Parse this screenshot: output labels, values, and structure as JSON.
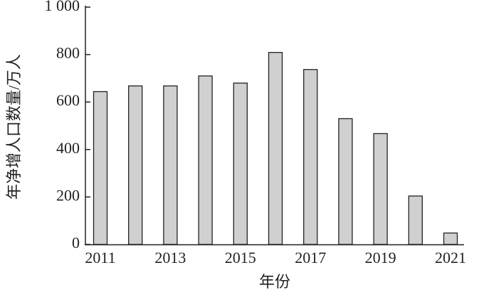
{
  "chart_data": {
    "type": "bar",
    "xlabel": "年份",
    "ylabel": "年净增人口数量/万人",
    "categories": [
      "2011",
      null,
      "2013",
      null,
      "2015",
      null,
      "2017",
      null,
      "2019",
      null,
      "2021"
    ],
    "values": [
      644,
      668,
      668,
      710,
      680,
      809,
      737,
      530,
      467,
      204,
      48
    ],
    "color": "#d0d0d0",
    "ylim": [
      0,
      1000
    ],
    "yticks": [
      0,
      200,
      400,
      600,
      800,
      {
        "value": 1000,
        "label": "1 000"
      }
    ],
    "grid": false
  }
}
